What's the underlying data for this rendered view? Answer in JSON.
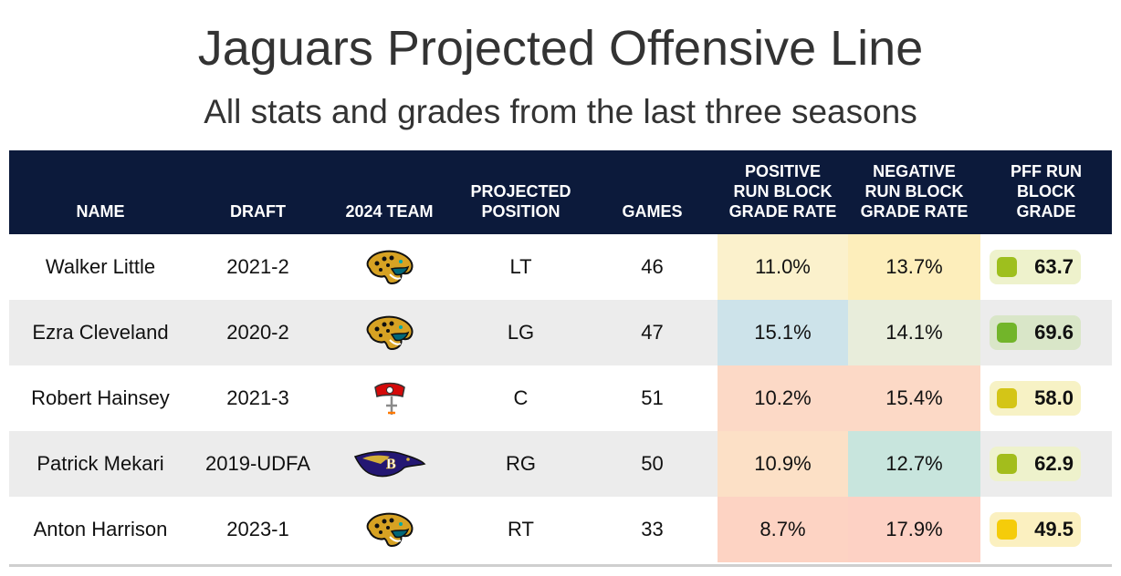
{
  "title": "Jaguars Projected Offensive Line",
  "subtitle": "All stats and grades from the last three seasons",
  "columns": {
    "name": "NAME",
    "draft": "DRAFT",
    "team": "2024 TEAM",
    "position_l1": "PROJECTED",
    "position_l2": "POSITION",
    "games": "GAMES",
    "pos_l1": "POSITIVE",
    "pos_l2": "RUN BLOCK",
    "pos_l3": "GRADE RATE",
    "neg_l1": "NEGATIVE",
    "neg_l2": "RUN BLOCK",
    "neg_l3": "GRADE RATE",
    "grade_l1": "PFF RUN",
    "grade_l2": "BLOCK",
    "grade_l3": "GRADE"
  },
  "chart_data": {
    "type": "table",
    "rows": [
      {
        "name": "Walker Little",
        "draft": "2021-2",
        "team_icon": "jaguars-logo-icon",
        "position": "LT",
        "games": "46",
        "positive_rate": "11.0%",
        "negative_rate": "13.7%",
        "grade": "63.7",
        "positive_color": "#fbf1cc",
        "negative_color": "#fdeebb",
        "grade_bg": "#eef2cc",
        "grade_dot": "#9ebf1e"
      },
      {
        "name": "Ezra Cleveland",
        "draft": "2020-2",
        "team_icon": "jaguars-logo-icon",
        "position": "LG",
        "games": "47",
        "positive_rate": "15.1%",
        "negative_rate": "14.1%",
        "grade": "69.6",
        "positive_color": "#cde3ea",
        "negative_color": "#e8eddb",
        "grade_bg": "#d9e6c8",
        "grade_dot": "#72b52a"
      },
      {
        "name": "Robert Hainsey",
        "draft": "2021-3",
        "team_icon": "buccaneers-logo-icon",
        "position": "C",
        "games": "51",
        "positive_rate": "10.2%",
        "negative_rate": "15.4%",
        "grade": "58.0",
        "positive_color": "#fcd9c6",
        "negative_color": "#fcd9c6",
        "grade_bg": "#f7f2c5",
        "grade_dot": "#d4c517"
      },
      {
        "name": "Patrick Mekari",
        "draft": "2019-UDFA",
        "team_icon": "ravens-logo-icon",
        "position": "RG",
        "games": "50",
        "positive_rate": "10.9%",
        "negative_rate": "12.7%",
        "grade": "62.9",
        "positive_color": "#fce0c6",
        "negative_color": "#c8e5dd",
        "grade_bg": "#eef2cc",
        "grade_dot": "#a3bd1c"
      },
      {
        "name": "Anton Harrison",
        "draft": "2023-1",
        "team_icon": "jaguars-logo-icon",
        "position": "RT",
        "games": "33",
        "positive_rate": "8.7%",
        "negative_rate": "17.9%",
        "grade": "49.5",
        "positive_color": "#fdd3c3",
        "negative_color": "#fdd1c4",
        "grade_bg": "#fbf0c0",
        "grade_dot": "#f5cc0a"
      }
    ]
  }
}
